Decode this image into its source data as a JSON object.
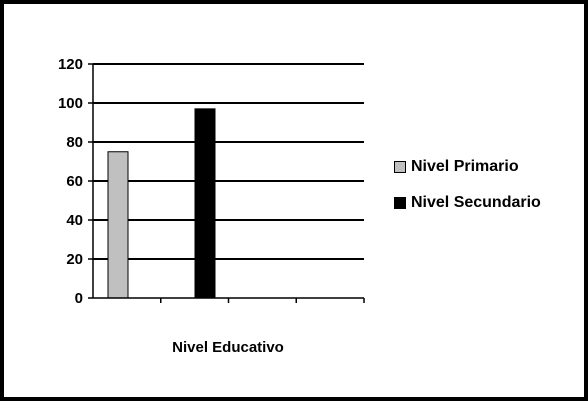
{
  "chart_data": {
    "type": "bar",
    "categories": [
      "Nivel Educativo"
    ],
    "series": [
      {
        "name": "Nivel Primario",
        "values": [
          75
        ],
        "color": "#c0c0c0"
      },
      {
        "name": "Nivel Secundario",
        "values": [
          97
        ],
        "color": "#000000"
      }
    ],
    "xlabel": "Nivel Educativo",
    "ylim": [
      0,
      120
    ],
    "yticks": [
      "0",
      "20",
      "40",
      "60",
      "80",
      "100",
      "120"
    ],
    "grid": true,
    "legend": "right"
  }
}
